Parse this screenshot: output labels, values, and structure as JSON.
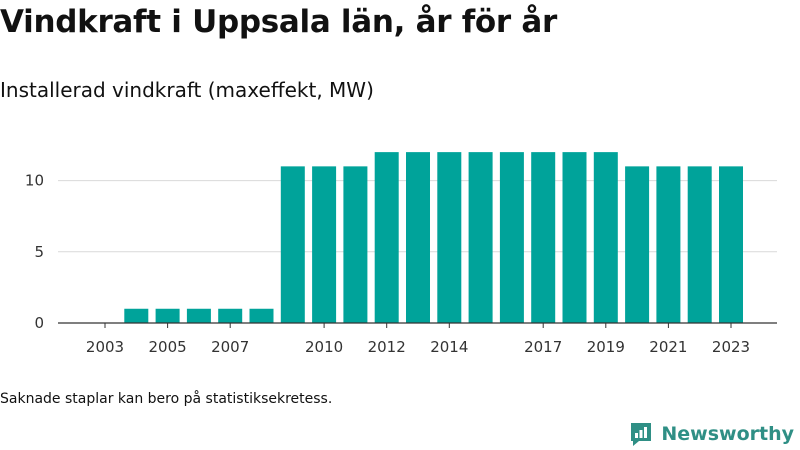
{
  "title": "Vindkraft i Uppsala län, år för år",
  "subtitle": "Installerad vindkraft (maxeffekt, MW)",
  "footnote": "Saknade staplar kan bero på statistiksekretess.",
  "brand": {
    "name": "Newsworthy",
    "icon": "newsworthy-logo-icon",
    "color": "#2f8f85"
  },
  "chart_data": {
    "type": "bar",
    "bar_color": "#00a39a",
    "x": [
      2004,
      2005,
      2006,
      2007,
      2008,
      2009,
      2010,
      2011,
      2012,
      2013,
      2014,
      2015,
      2016,
      2017,
      2018,
      2019,
      2020,
      2021,
      2022,
      2023
    ],
    "values": [
      1,
      1,
      1,
      1,
      1,
      11,
      11,
      11,
      12,
      12,
      12,
      12,
      12,
      12,
      12,
      12,
      11,
      11,
      11,
      11
    ],
    "xlim": [
      2003,
      2023
    ],
    "xticks": [
      "2003",
      "2005",
      "2007",
      "2010",
      "2012",
      "2014",
      "2017",
      "2019",
      "2021",
      "2023"
    ],
    "ylim": [
      0,
      12
    ],
    "yticks": [
      "0",
      "5",
      "10"
    ],
    "grid": true
  }
}
